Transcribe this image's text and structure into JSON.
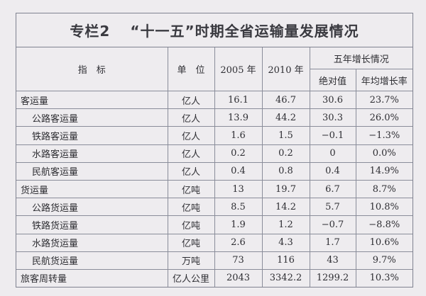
{
  "title": {
    "prefix": "专栏2",
    "text": "“十一五”时期全省运输量发展情况"
  },
  "headers": {
    "indicator": "指　标",
    "unit": "单　位",
    "y2005": "2005 年",
    "y2010": "2010 年",
    "growth": "五年增长情况",
    "absolute": "绝对值",
    "rate": "年均增长率"
  },
  "rows": [
    {
      "name": "客运量",
      "sub": false,
      "unit": "亿人",
      "y2005": "16.1",
      "y2010": "46.7",
      "abs": "30.6",
      "rate": "23.7%"
    },
    {
      "name": "公路客运量",
      "sub": true,
      "unit": "亿人",
      "y2005": "13.9",
      "y2010": "44.2",
      "abs": "30.3",
      "rate": "26.0%"
    },
    {
      "name": "铁路客运量",
      "sub": true,
      "unit": "亿人",
      "y2005": "1.6",
      "y2010": "1.5",
      "abs": "−0.1",
      "rate": "−1.3%"
    },
    {
      "name": "水路客运量",
      "sub": true,
      "unit": "亿人",
      "y2005": "0.2",
      "y2010": "0.2",
      "abs": "0",
      "rate": "0.0%"
    },
    {
      "name": "民航客运量",
      "sub": true,
      "unit": "亿人",
      "y2005": "0.4",
      "y2010": "0.8",
      "abs": "0.4",
      "rate": "14.9%"
    },
    {
      "name": "货运量",
      "sub": false,
      "unit": "亿吨",
      "y2005": "13",
      "y2010": "19.7",
      "abs": "6.7",
      "rate": "8.7%"
    },
    {
      "name": "公路货运量",
      "sub": true,
      "unit": "亿吨",
      "y2005": "8.5",
      "y2010": "14.2",
      "abs": "5.7",
      "rate": "10.8%"
    },
    {
      "name": "铁路货运量",
      "sub": true,
      "unit": "亿吨",
      "y2005": "1.9",
      "y2010": "1.2",
      "abs": "−0.7",
      "rate": "−8.8%"
    },
    {
      "name": "水路货运量",
      "sub": true,
      "unit": "亿吨",
      "y2005": "2.6",
      "y2010": "4.3",
      "abs": "1.7",
      "rate": "10.6%"
    },
    {
      "name": "民航货运量",
      "sub": true,
      "unit": "万吨",
      "y2005": "73",
      "y2010": "116",
      "abs": "43",
      "rate": "9.7%"
    },
    {
      "name": "旅客周转量",
      "sub": false,
      "unit": "亿人公里",
      "y2005": "2043",
      "y2010": "3342.2",
      "abs": "1299.2",
      "rate": "10.3%"
    }
  ]
}
